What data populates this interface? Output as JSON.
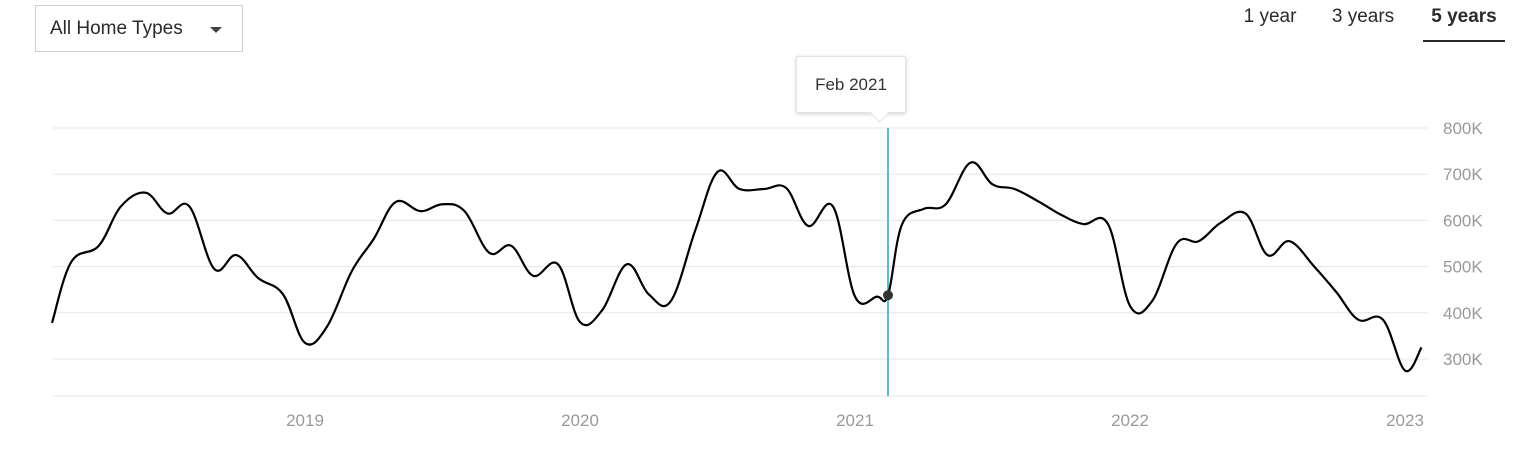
{
  "filter": {
    "selected": "All Home Types",
    "icon": "caret-down-icon"
  },
  "range_tabs": [
    {
      "label": "1 year",
      "active": false
    },
    {
      "label": "3 years",
      "active": false
    },
    {
      "label": "5 years",
      "active": true
    }
  ],
  "tooltip": {
    "label": "Feb 2021"
  },
  "colors": {
    "line": "#000000",
    "cursor": "#5bbcc9",
    "grid": "#e5e5e5",
    "axis_text": "#999999"
  },
  "chart_data": {
    "type": "line",
    "title": "",
    "xlabel": "",
    "ylabel": "",
    "x_ticks": [
      "2019",
      "2020",
      "2021",
      "2022",
      "2023"
    ],
    "y_ticks": [
      "800K",
      "700K",
      "600K",
      "500K",
      "400K",
      "300K"
    ],
    "ylim": [
      220000,
      800000
    ],
    "xlim": [
      2018.08,
      2023.06
    ],
    "grid": true,
    "y_axis_position": "right",
    "highlight": {
      "label": "Feb 2021",
      "x": 2021.12,
      "y": 438000
    },
    "series": [
      {
        "x": [
          2018.08,
          2018.15,
          2018.25,
          2018.33,
          2018.42,
          2018.5,
          2018.58,
          2018.67,
          2018.75,
          2018.83,
          2018.92,
          2019.0,
          2019.08,
          2019.17,
          2019.25,
          2019.33,
          2019.42,
          2019.5,
          2019.58,
          2019.67,
          2019.75,
          2019.83,
          2019.92,
          2020.0,
          2020.08,
          2020.17,
          2020.25,
          2020.33,
          2020.42,
          2020.5,
          2020.58,
          2020.67,
          2020.75,
          2020.83,
          2020.92,
          2021.0,
          2021.08,
          2021.12,
          2021.17,
          2021.25,
          2021.33,
          2021.42,
          2021.5,
          2021.58,
          2021.67,
          2021.75,
          2021.83,
          2021.92,
          2022.0,
          2022.08,
          2022.17,
          2022.25,
          2022.33,
          2022.42,
          2022.5,
          2022.58,
          2022.67,
          2022.75,
          2022.83,
          2022.92,
          2023.0,
          2023.06
        ],
        "y": [
          378000,
          510000,
          545000,
          630000,
          660000,
          615000,
          630000,
          495000,
          525000,
          475000,
          440000,
          335000,
          370000,
          490000,
          560000,
          640000,
          620000,
          635000,
          620000,
          530000,
          545000,
          480000,
          505000,
          380000,
          405000,
          505000,
          440000,
          425000,
          580000,
          705000,
          668000,
          668000,
          670000,
          588000,
          630000,
          435000,
          435000,
          438000,
          590000,
          625000,
          635000,
          725000,
          678000,
          668000,
          640000,
          612000,
          592000,
          592000,
          415000,
          425000,
          550000,
          555000,
          595000,
          615000,
          525000,
          555000,
          500000,
          445000,
          385000,
          385000,
          275000,
          325000
        ]
      }
    ]
  }
}
